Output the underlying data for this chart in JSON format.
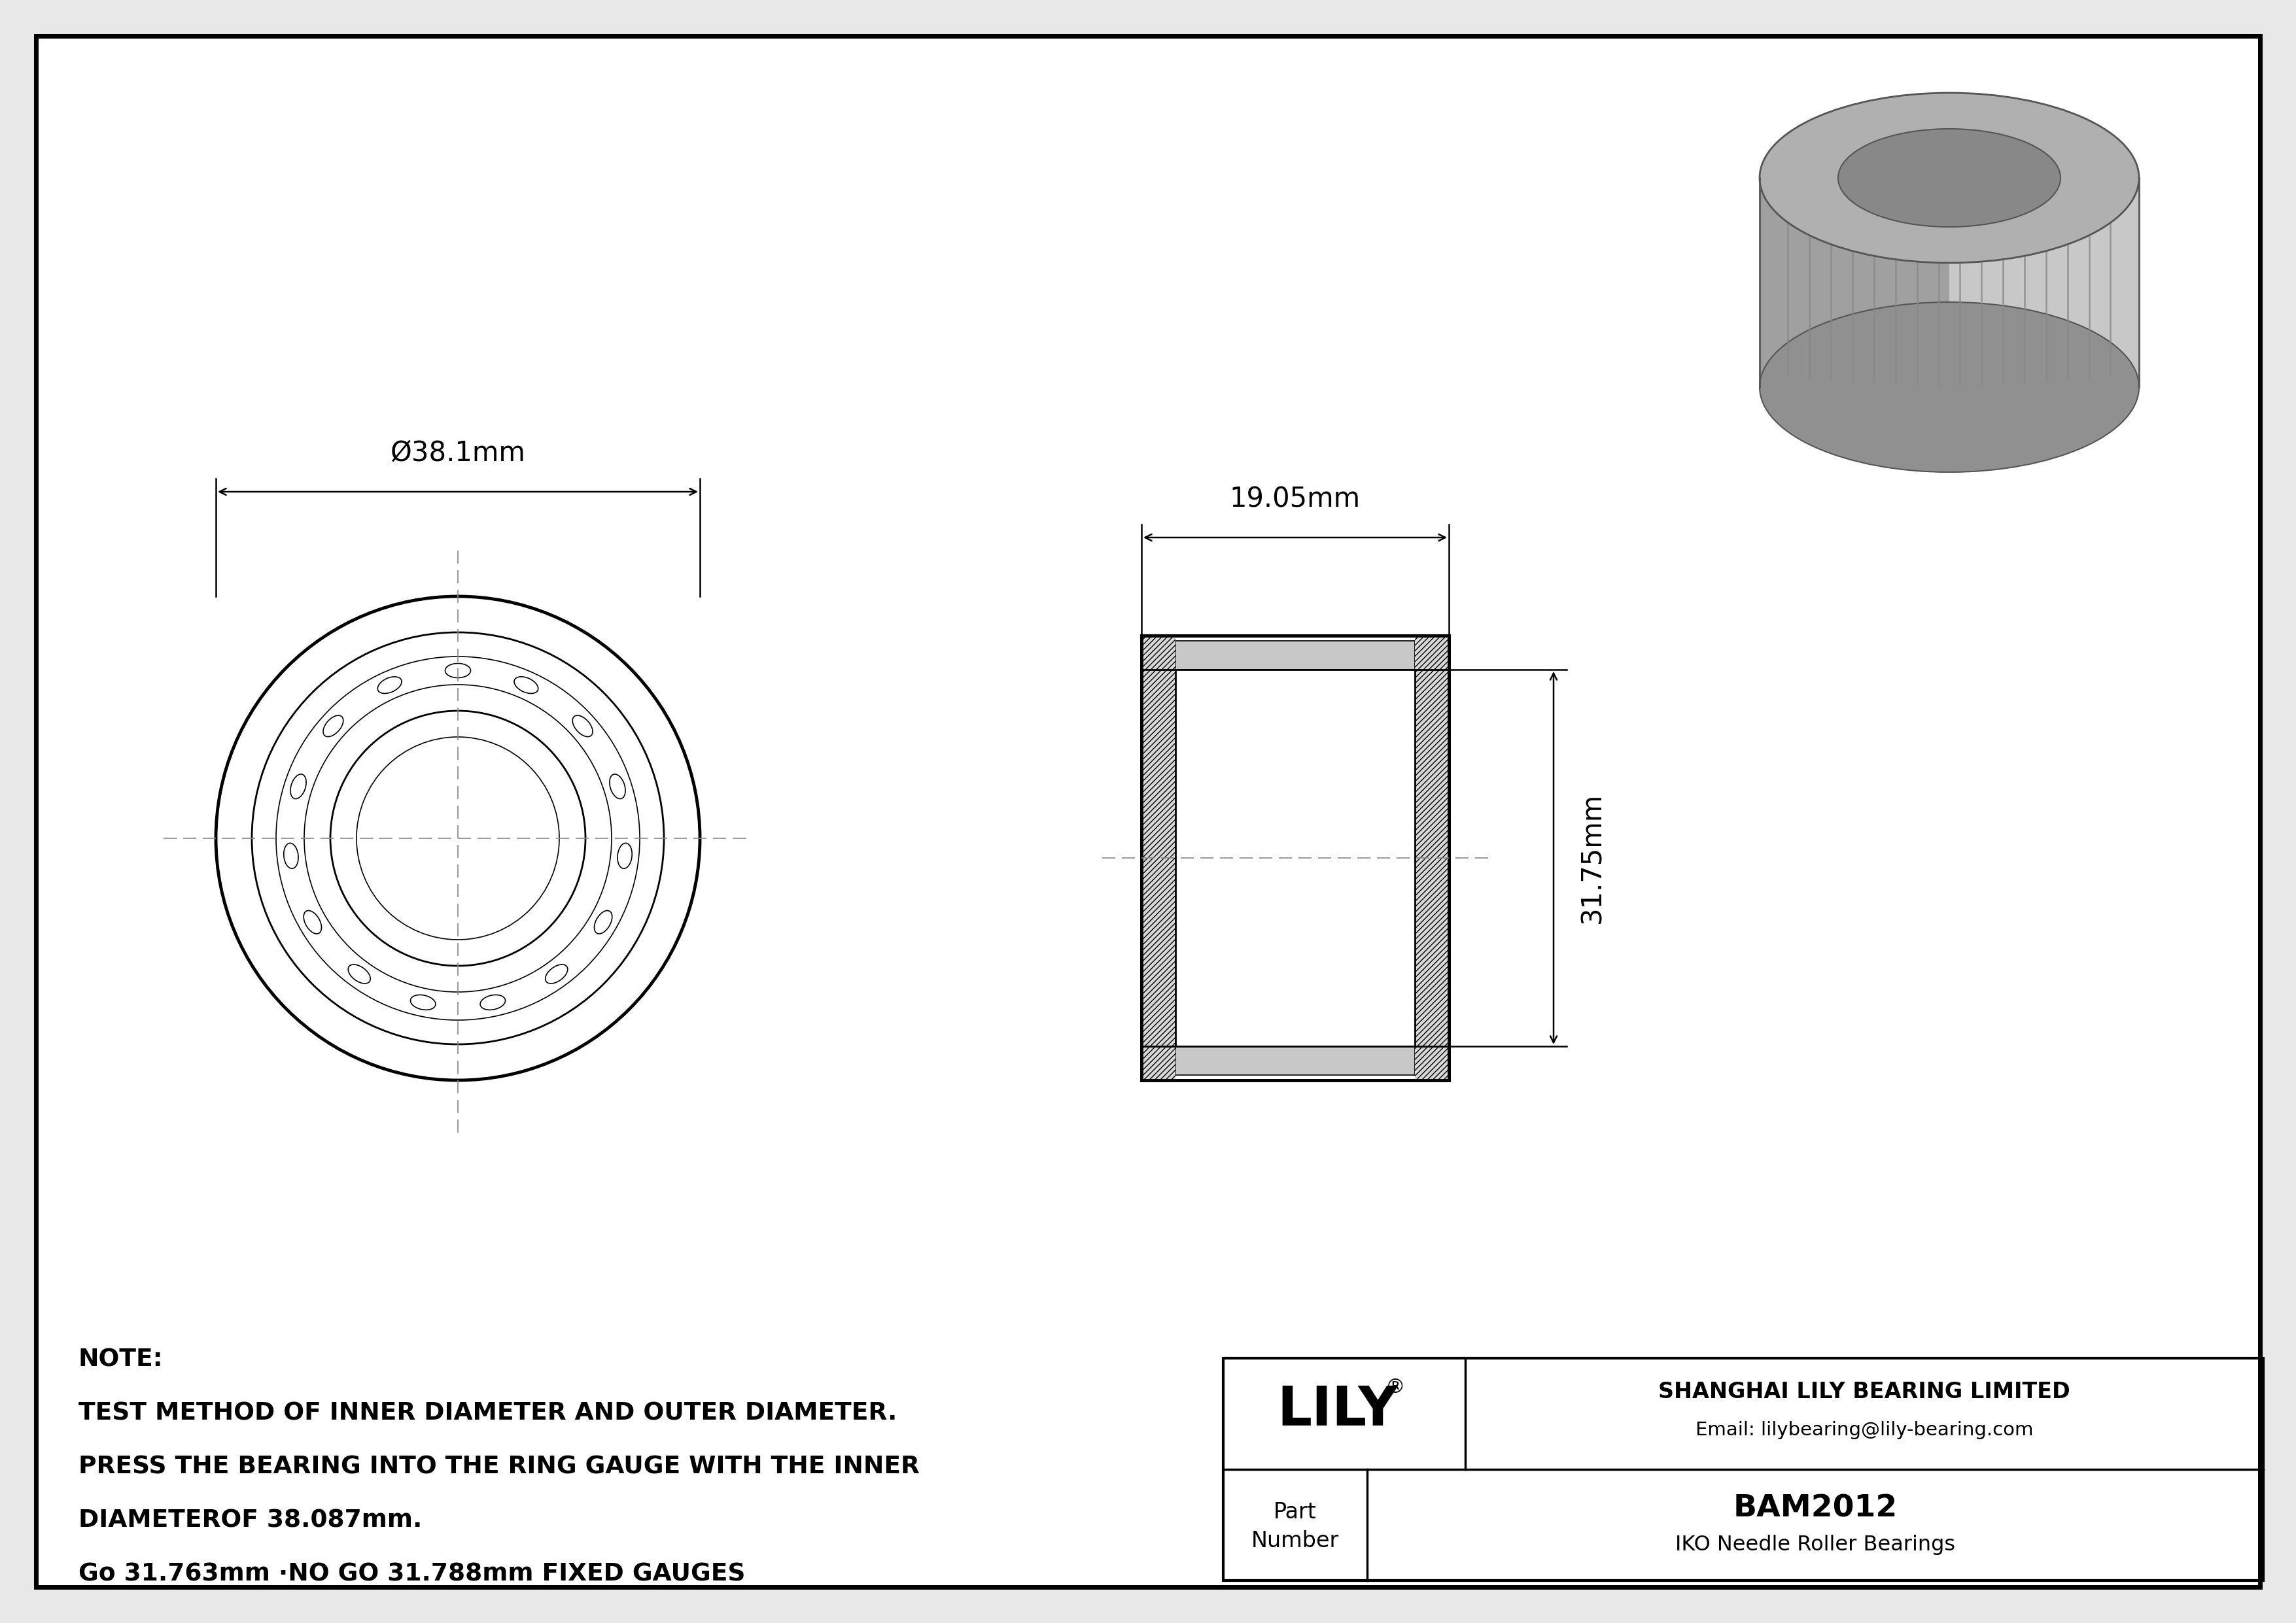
{
  "bg_color": "#e8e8e8",
  "drawing_bg": "#ffffff",
  "border_color": "#000000",
  "line_color": "#000000",
  "dim_color": "#000000",
  "centerline_color": "#888888",
  "lw_thick": 3.5,
  "lw_medium": 2.0,
  "lw_thin": 1.2,
  "lw_dim": 1.8,
  "outer_diameter_label": "Ø38.1mm",
  "width_label": "19.05mm",
  "height_label": "31.75mm",
  "note_line1": "NOTE:",
  "note_line2": "TEST METHOD OF INNER DIAMETER AND OUTER DIAMETER.",
  "note_line3": "PRESS THE BEARING INTO THE RING GAUGE WITH THE INNER",
  "note_line4": "DIAMETEROF 38.087mm.",
  "note_line5": "Go 31.763mm ·NO GO 31.788mm FIXED GAUGES",
  "company_name": "SHANGHAI LILY BEARING LIMITED",
  "company_email": "Email: lilybearing@lily-bearing.com",
  "part_number": "BAM2012",
  "bearing_type": "IKO Needle Roller Bearings",
  "lily_logo": "LILY",
  "logo_reg": "®"
}
